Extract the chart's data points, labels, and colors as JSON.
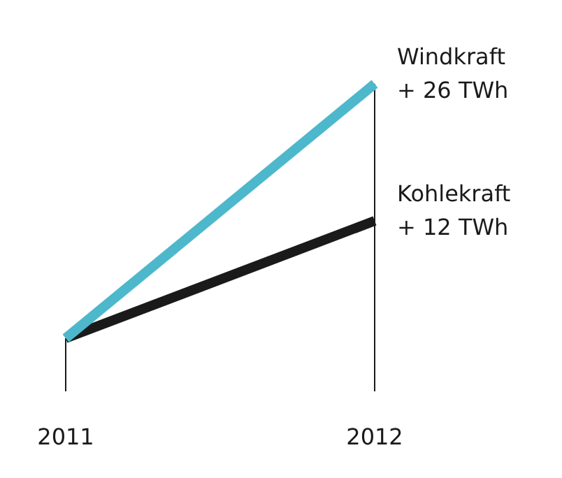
{
  "chart_data": {
    "type": "line",
    "categories": [
      "2011",
      "2012"
    ],
    "series": [
      {
        "name": "Windkraft",
        "color": "#4db8cc",
        "values": [
          0,
          26
        ],
        "value_labels": [
          null,
          "+ 26 TWh"
        ]
      },
      {
        "name": "Kohlekraft",
        "color": "#1a1a1a",
        "values": [
          0,
          12
        ],
        "value_labels": [
          null,
          "+ 12 TWh"
        ]
      }
    ]
  }
}
